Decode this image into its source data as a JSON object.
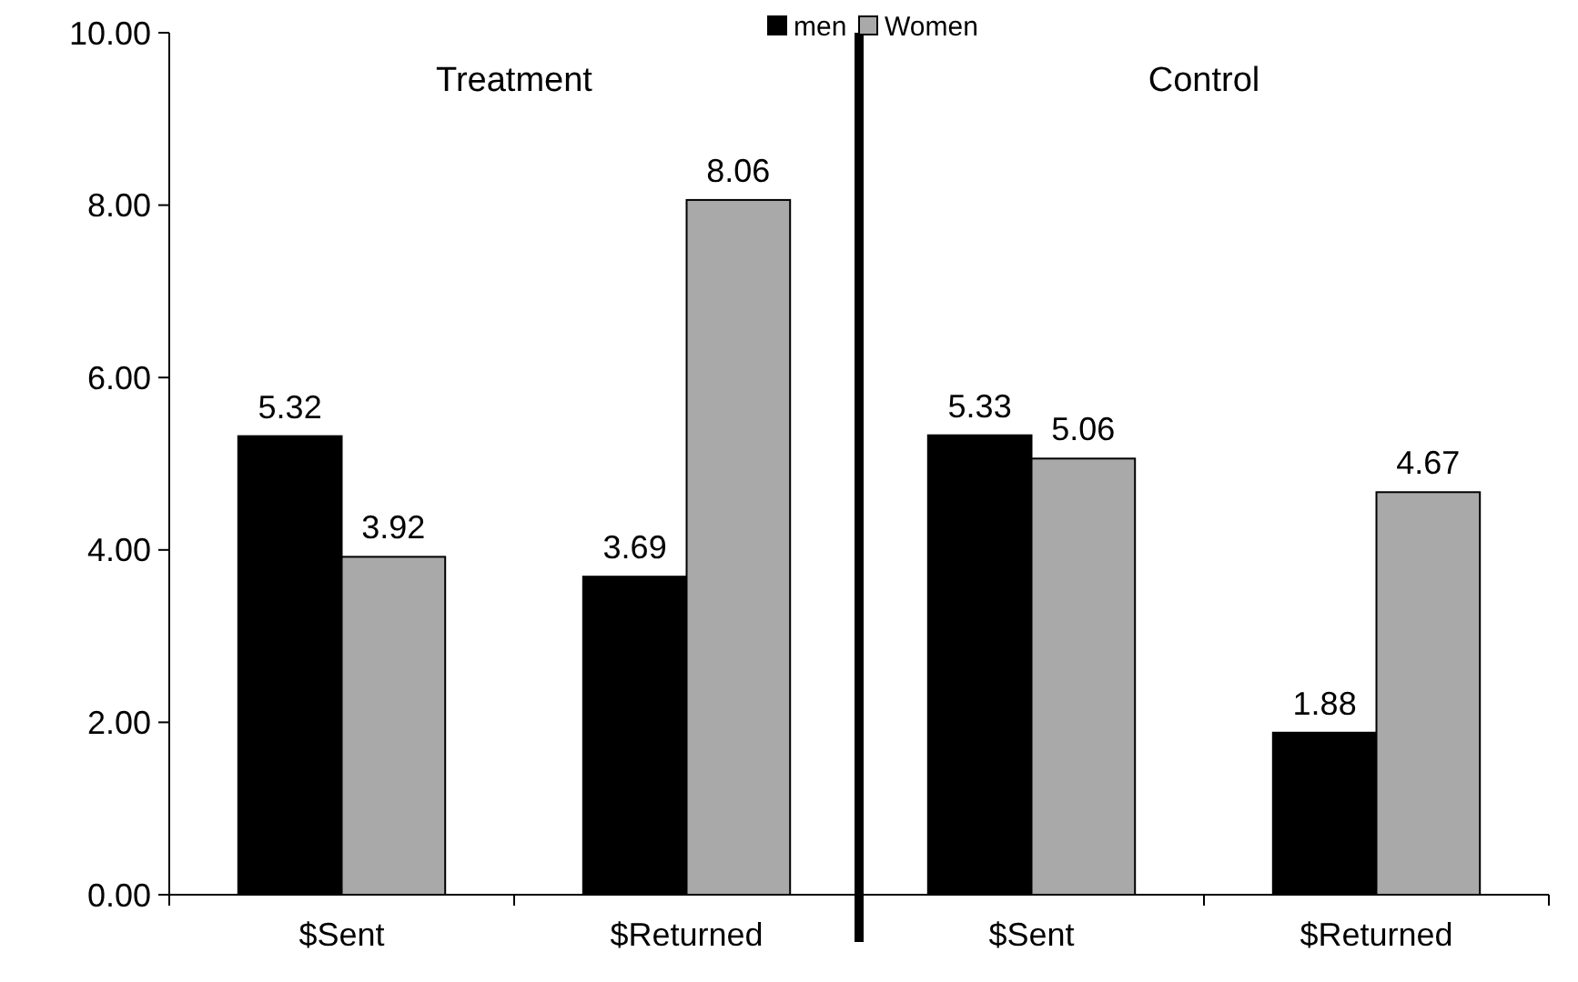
{
  "chart_data": {
    "type": "bar",
    "categories": [
      "$Sent",
      "$Returned",
      "$Sent",
      "$Returned"
    ],
    "series": [
      {
        "name": "men",
        "color": "#000000",
        "values": [
          5.32,
          3.69,
          5.33,
          1.88
        ]
      },
      {
        "name": "Women",
        "color": "#a9a9a9",
        "values": [
          3.92,
          8.06,
          5.06,
          4.67
        ]
      }
    ],
    "ylim": [
      0,
      10
    ],
    "yticks": [
      {
        "value": 0,
        "label": "0.00"
      },
      {
        "value": 2,
        "label": "2.00"
      },
      {
        "value": 4,
        "label": "4.00"
      },
      {
        "value": 6,
        "label": "6.00"
      },
      {
        "value": 8,
        "label": "8.00"
      },
      {
        "value": 10,
        "label": "10.00"
      }
    ],
    "data_labels": true,
    "legend": "top",
    "grid": false,
    "annotations": [
      "Treatment",
      "Control"
    ]
  }
}
